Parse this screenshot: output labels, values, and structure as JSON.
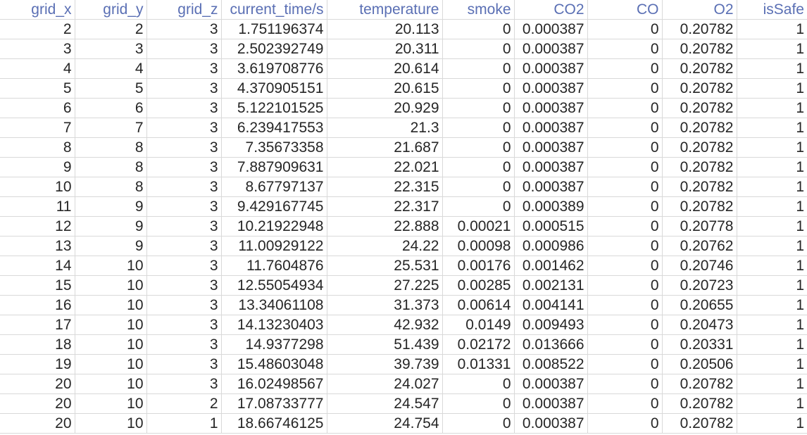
{
  "sheet": {
    "columns": [
      "grid_x",
      "grid_y",
      "grid_z",
      "current_time/s",
      "temperature",
      "smoke",
      "CO2",
      "CO",
      "O2",
      "isSafe"
    ],
    "rows": [
      [
        "2",
        "2",
        "3",
        "1.751196374",
        "20.113",
        "0",
        "0.000387",
        "0",
        "0.20782",
        "1"
      ],
      [
        "3",
        "3",
        "3",
        "2.502392749",
        "20.311",
        "0",
        "0.000387",
        "0",
        "0.20782",
        "1"
      ],
      [
        "4",
        "4",
        "3",
        "3.619708776",
        "20.614",
        "0",
        "0.000387",
        "0",
        "0.20782",
        "1"
      ],
      [
        "5",
        "5",
        "3",
        "4.370905151",
        "20.615",
        "0",
        "0.000387",
        "0",
        "0.20782",
        "1"
      ],
      [
        "6",
        "6",
        "3",
        "5.122101525",
        "20.929",
        "0",
        "0.000387",
        "0",
        "0.20782",
        "1"
      ],
      [
        "7",
        "7",
        "3",
        "6.239417553",
        "21.3",
        "0",
        "0.000387",
        "0",
        "0.20782",
        "1"
      ],
      [
        "8",
        "8",
        "3",
        "7.35673358",
        "21.687",
        "0",
        "0.000387",
        "0",
        "0.20782",
        "1"
      ],
      [
        "9",
        "8",
        "3",
        "7.887909631",
        "22.021",
        "0",
        "0.000387",
        "0",
        "0.20782",
        "1"
      ],
      [
        "10",
        "8",
        "3",
        "8.67797137",
        "22.315",
        "0",
        "0.000387",
        "0",
        "0.20782",
        "1"
      ],
      [
        "11",
        "9",
        "3",
        "9.429167745",
        "22.317",
        "0",
        "0.000389",
        "0",
        "0.20782",
        "1"
      ],
      [
        "12",
        "9",
        "3",
        "10.21922948",
        "22.888",
        "0.00021",
        "0.000515",
        "0",
        "0.20778",
        "1"
      ],
      [
        "13",
        "9",
        "3",
        "11.00929122",
        "24.22",
        "0.00098",
        "0.000986",
        "0",
        "0.20762",
        "1"
      ],
      [
        "14",
        "10",
        "3",
        "11.7604876",
        "25.531",
        "0.00176",
        "0.001462",
        "0",
        "0.20746",
        "1"
      ],
      [
        "15",
        "10",
        "3",
        "12.55054934",
        "27.225",
        "0.00285",
        "0.002131",
        "0",
        "0.20723",
        "1"
      ],
      [
        "16",
        "10",
        "3",
        "13.34061108",
        "31.373",
        "0.00614",
        "0.004141",
        "0",
        "0.20655",
        "1"
      ],
      [
        "17",
        "10",
        "3",
        "14.13230403",
        "42.932",
        "0.0149",
        "0.009493",
        "0",
        "0.20473",
        "1"
      ],
      [
        "18",
        "10",
        "3",
        "14.9377298",
        "51.439",
        "0.02172",
        "0.013666",
        "0",
        "0.20331",
        "1"
      ],
      [
        "19",
        "10",
        "3",
        "15.48603048",
        "39.739",
        "0.01331",
        "0.008522",
        "0",
        "0.20506",
        "1"
      ],
      [
        "20",
        "10",
        "3",
        "16.02498567",
        "24.027",
        "0",
        "0.000387",
        "0",
        "0.20782",
        "1"
      ],
      [
        "20",
        "10",
        "2",
        "17.08733777",
        "24.547",
        "0",
        "0.000387",
        "0",
        "0.20782",
        "1"
      ],
      [
        "20",
        "10",
        "1",
        "18.66746125",
        "24.754",
        "0",
        "0.000387",
        "0",
        "0.20782",
        "1"
      ]
    ]
  },
  "colors": {
    "header_text": "#5a6fb4",
    "cell_text": "#262626",
    "gridline": "#d9d9d9",
    "background": "#ffffff"
  }
}
